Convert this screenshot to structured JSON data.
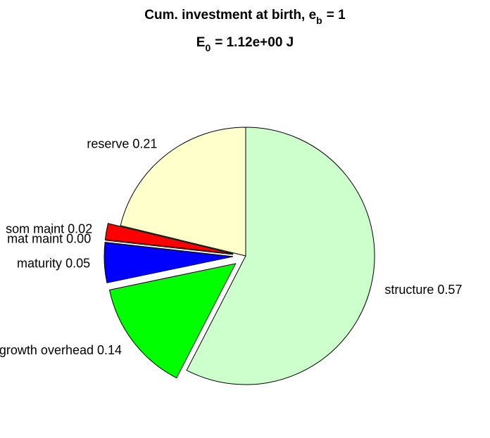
{
  "chart_data": {
    "type": "pie",
    "title": [
      "Cum. investment at birth, e",
      "b",
      "= 1"
    ],
    "subtitle": [
      "E",
      "0",
      "= 1.12e+00 J"
    ],
    "categories": [
      "structure",
      "growth overhead",
      "maturity",
      "mat maint",
      "som maint",
      "reserve"
    ],
    "values": [
      0.57,
      0.14,
      0.05,
      0,
      0.02,
      0.21
    ],
    "value_labels": [
      "0.57",
      "0.14",
      "0.05",
      "0.00",
      "0.02",
      "0.21"
    ],
    "colors": [
      "#ccffcc",
      "#00ff00",
      "#0000ff",
      "#ff00ff",
      "#ff0000",
      "#ffffcc"
    ],
    "explode": [
      0,
      1,
      1,
      1,
      1,
      0
    ]
  }
}
